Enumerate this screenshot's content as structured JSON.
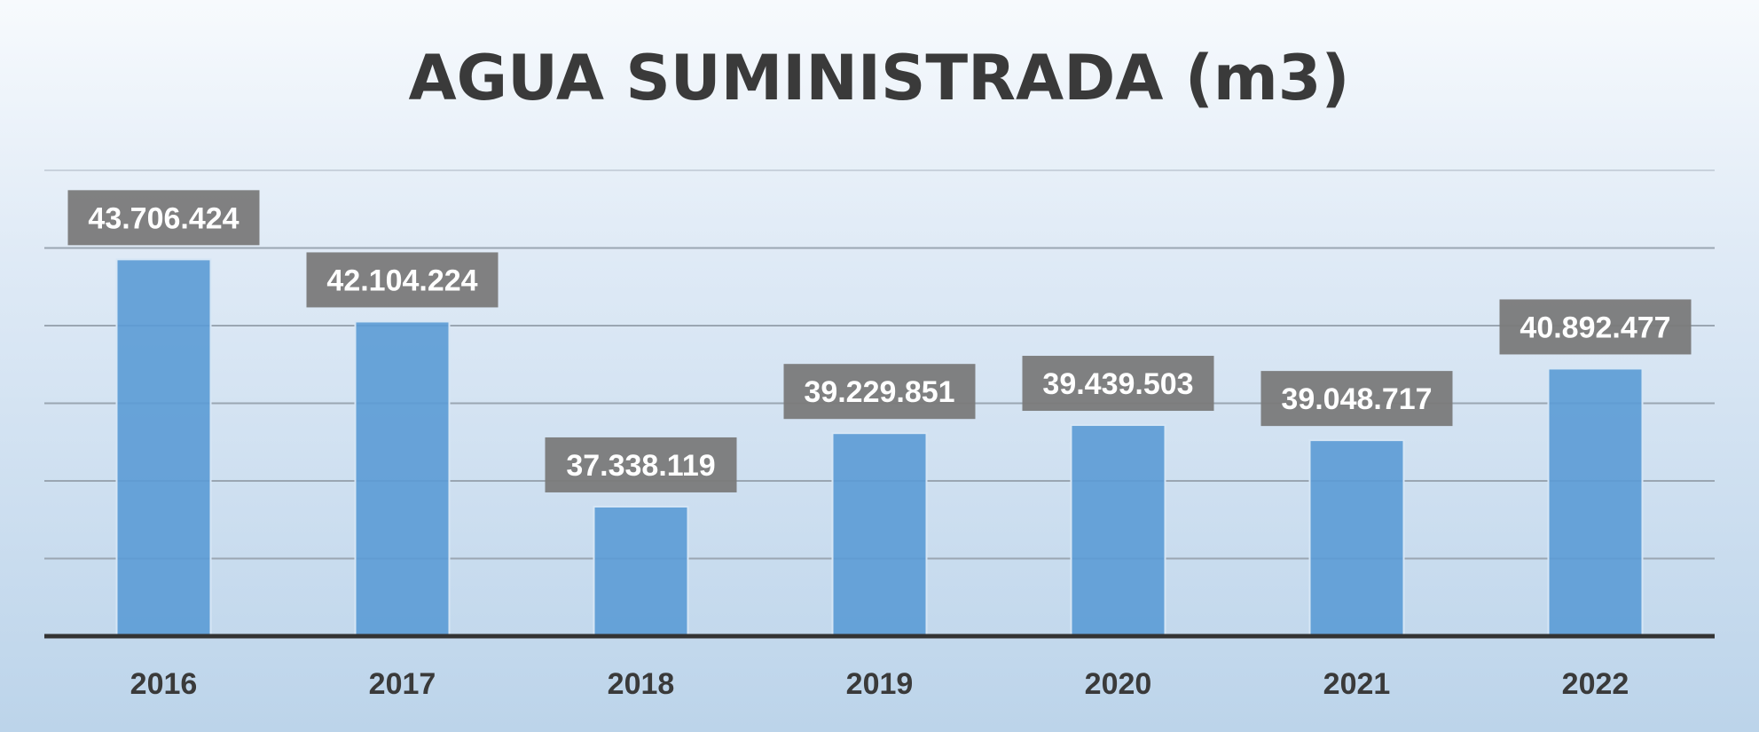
{
  "chart_data": {
    "type": "bar",
    "title": "AGUA SUMINISTRADA (m3)",
    "xlabel": "",
    "ylabel": "",
    "categories": [
      "2016",
      "2017",
      "2018",
      "2019",
      "2020",
      "2021",
      "2022"
    ],
    "values": [
      43706424,
      42104224,
      37338119,
      39229851,
      39439503,
      39048717,
      40892477
    ],
    "value_labels": [
      "43.706.424",
      "42.104.224",
      "37.338.119",
      "39.229.851",
      "39.439.503",
      "39.048.717",
      "40.892.477"
    ],
    "ylim": [
      34000000,
      46000000
    ],
    "grid": true,
    "legend": "none",
    "colors": {
      "bar": "#5b9bd5",
      "label_box": "#7a7a7a",
      "label_text": "#ffffff",
      "text": "#3a3a3a",
      "axis": "#333333",
      "grid": "#9aa6b2"
    }
  }
}
